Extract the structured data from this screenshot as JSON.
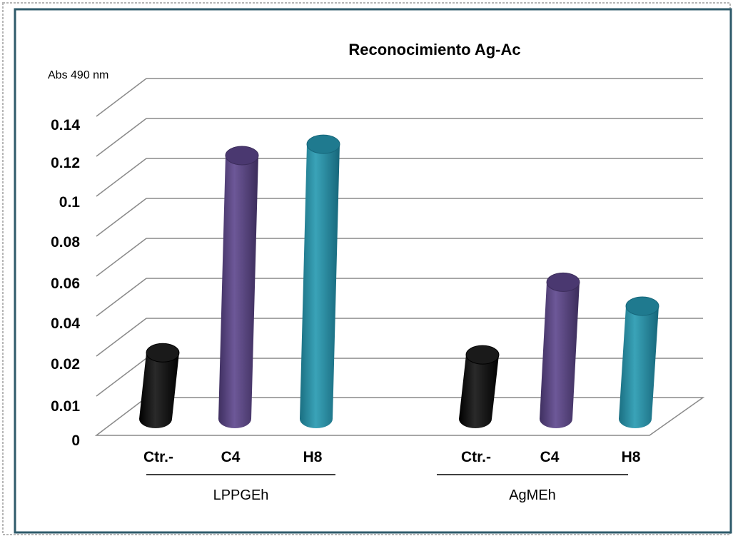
{
  "chart_data": {
    "type": "bar",
    "title": "Reconocimiento Ag-Ac",
    "ylabel": "Abs 490 nm",
    "xlabel": "",
    "y_tick_labels": [
      "0",
      "0.01",
      "0.02",
      "0.04",
      "0.06",
      "0.08",
      "0.1",
      "0.12",
      "0.14"
    ],
    "groups": [
      {
        "label": "LPPGEh",
        "categories": [
          "Ctr.-",
          "C4",
          "H8"
        ],
        "values": [
          0.022,
          0.12,
          0.126
        ]
      },
      {
        "label": "AgMEh",
        "categories": [
          "Ctr.-",
          "C4",
          "H8"
        ],
        "values": [
          0.021,
          0.057,
          0.045
        ]
      }
    ],
    "bar_colors": [
      "#000000",
      "#5e4a85",
      "#2f8ea3"
    ],
    "grid": true,
    "legend": "none",
    "style": "3d-cylinder"
  }
}
